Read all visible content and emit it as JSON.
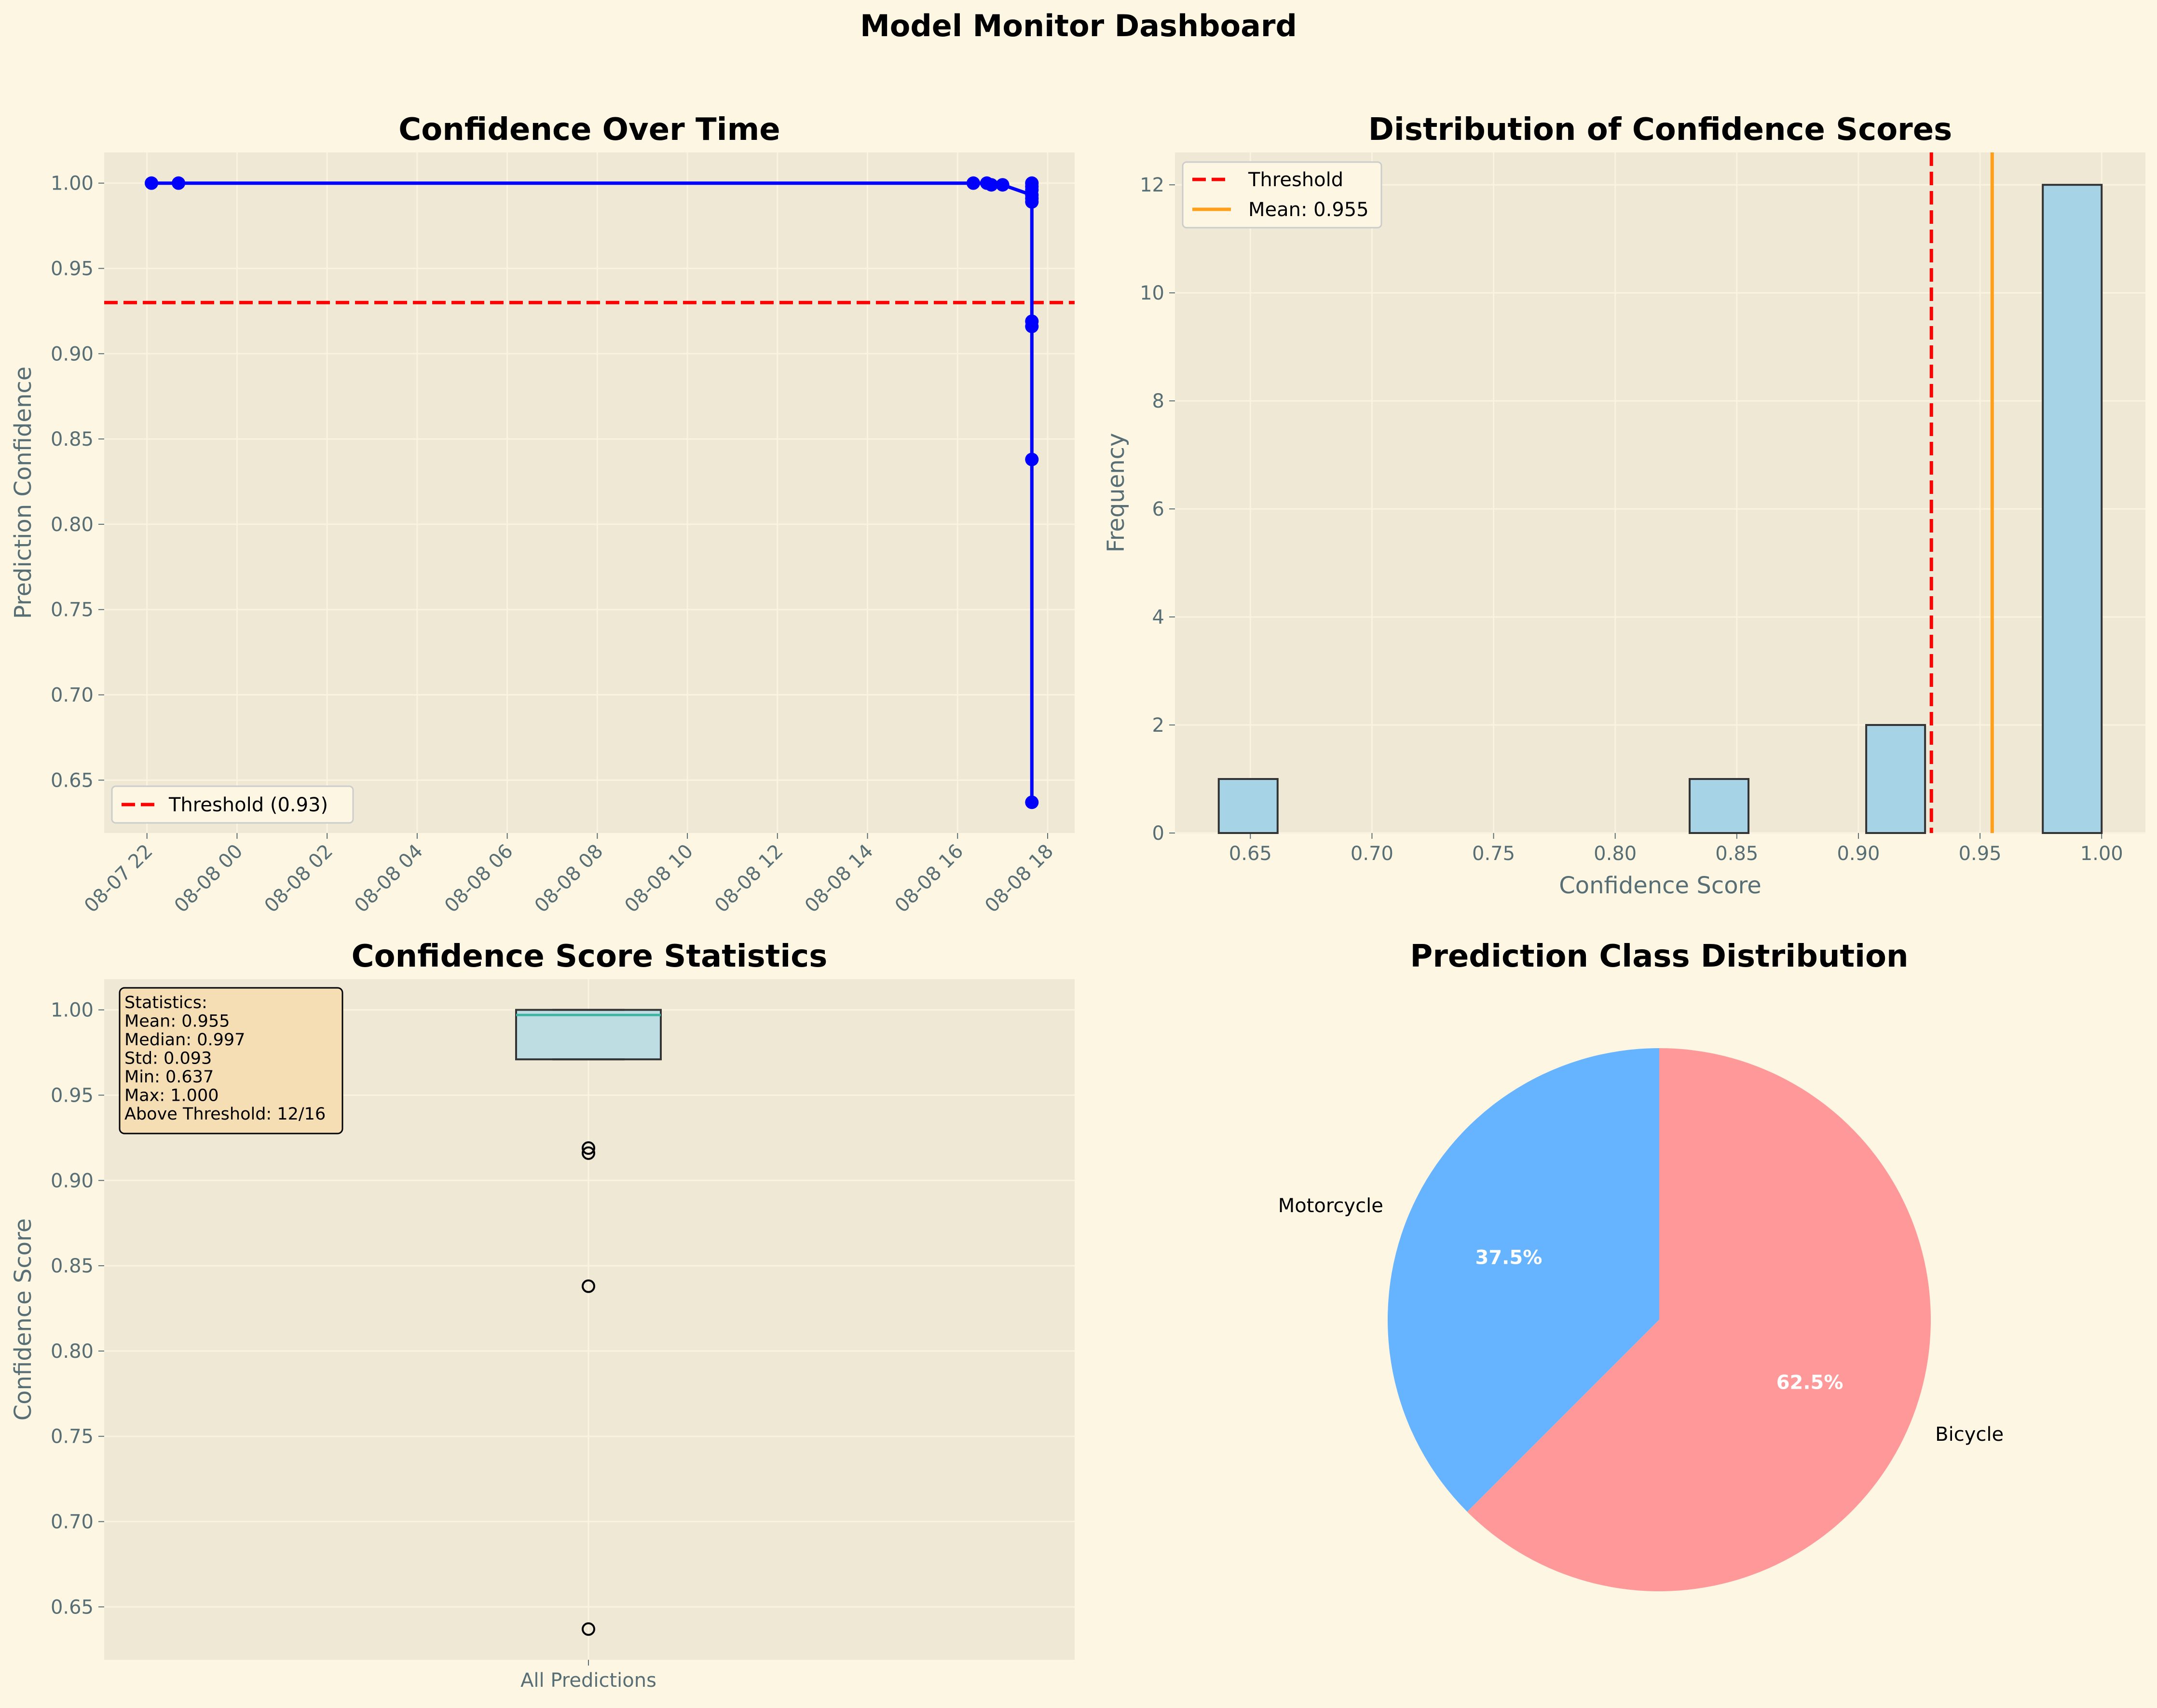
{
  "page": {
    "title": "Model Monitor Dashboard",
    "background": "#fdf6e3",
    "panel_background": "#eee8d5"
  },
  "chart_data": [
    {
      "id": "line",
      "type": "line",
      "title": "Confidence Over Time",
      "xlabel": "",
      "ylabel": "Prediction Confidence",
      "xticks": [
        "08-07 22",
        "08-08 00",
        "08-08 02",
        "08-08 04",
        "08-08 06",
        "08-08 08",
        "08-08 10",
        "08-08 12",
        "08-08 14",
        "08-08 16",
        "08-08 18"
      ],
      "xtick_hours": [
        0,
        2,
        4,
        6,
        8,
        10,
        12,
        14,
        16,
        18,
        20
      ],
      "xlim_hours": [
        -0.95,
        20.6
      ],
      "yticks": [
        "0.65",
        "0.70",
        "0.75",
        "0.80",
        "0.85",
        "0.90",
        "0.95",
        "1.00"
      ],
      "ylim": [
        0.619,
        1.018
      ],
      "series": [
        {
          "name": "Confidence",
          "color": "#0000ff",
          "x_hours": [
            0.1,
            0.7,
            18.35,
            18.65,
            18.75,
            19.0,
            19.65,
            19.65,
            19.65,
            19.65,
            19.65,
            19.65,
            19.65,
            19.65,
            19.65,
            19.65
          ],
          "y": [
            1.0,
            1.0,
            1.0,
            1.0,
            0.999,
            0.999,
            0.993,
            1.0,
            0.998,
            0.996,
            0.991,
            0.919,
            0.916,
            0.838,
            0.637,
            0.989
          ]
        }
      ],
      "threshold": {
        "value": 0.93,
        "label": "Threshold (0.93)",
        "color": "#ff0000"
      },
      "legend": {
        "position": "lower-left",
        "entries": [
          "Threshold (0.93)"
        ]
      },
      "grid": true
    },
    {
      "id": "hist",
      "type": "bar",
      "title": "Distribution of Confidence Scores",
      "xlabel": "Confidence Score",
      "ylabel": "Frequency",
      "xticks": [
        "0.65",
        "0.70",
        "0.75",
        "0.80",
        "0.85",
        "0.90",
        "0.95",
        "1.00"
      ],
      "xlim": [
        0.619,
        1.018
      ],
      "yticks": [
        "0",
        "2",
        "4",
        "6",
        "8",
        "10",
        "12"
      ],
      "ylim": [
        0,
        12.6
      ],
      "bins": [
        {
          "start": 0.637,
          "end": 0.6612,
          "count": 1
        },
        {
          "start": 0.8306,
          "end": 0.8548,
          "count": 1
        },
        {
          "start": 0.9032,
          "end": 0.9274,
          "count": 2
        },
        {
          "start": 0.9758,
          "end": 1.0,
          "count": 12
        }
      ],
      "bar_color": "#a6d4e6",
      "threshold": {
        "value": 0.93,
        "label": "Threshold",
        "color": "#ff0000"
      },
      "mean": {
        "value": 0.955,
        "label": "Mean: 0.955",
        "color": "#ff9f1a"
      },
      "legend": {
        "position": "top-left",
        "entries": [
          "Threshold",
          "Mean: 0.955"
        ]
      },
      "grid": true
    },
    {
      "id": "box",
      "type": "box",
      "title": "Confidence Score Statistics",
      "xlabel": "",
      "ylabel": "Confidence Score",
      "category": "All Predictions",
      "yticks": [
        "0.65",
        "0.70",
        "0.75",
        "0.80",
        "0.85",
        "0.90",
        "0.95",
        "1.00"
      ],
      "ylim": [
        0.619,
        1.018
      ],
      "q1": 0.971,
      "median": 0.997,
      "q3": 1.0,
      "whisker_low": 0.971,
      "whisker_high": 1.0,
      "outliers": [
        0.919,
        0.916,
        0.838,
        0.637
      ],
      "box_color": "#bddde3",
      "stats_box": {
        "lines": [
          "Statistics:",
          "Mean: 0.955",
          "Median: 0.997",
          "Std: 0.093",
          "Min: 0.637",
          "Max: 1.000",
          "Above Threshold: 12/16"
        ],
        "background": "#f5deb3"
      },
      "grid": true
    },
    {
      "id": "pie",
      "type": "pie",
      "title": "Prediction Class Distribution",
      "slices": [
        {
          "label": "Motorcycle",
          "value": 37.5,
          "pct_label": "37.5%",
          "color": "#66b3ff"
        },
        {
          "label": "Bicycle",
          "value": 62.5,
          "pct_label": "62.5%",
          "color": "#ff9999"
        }
      ],
      "start_angle_deg": 90
    }
  ]
}
